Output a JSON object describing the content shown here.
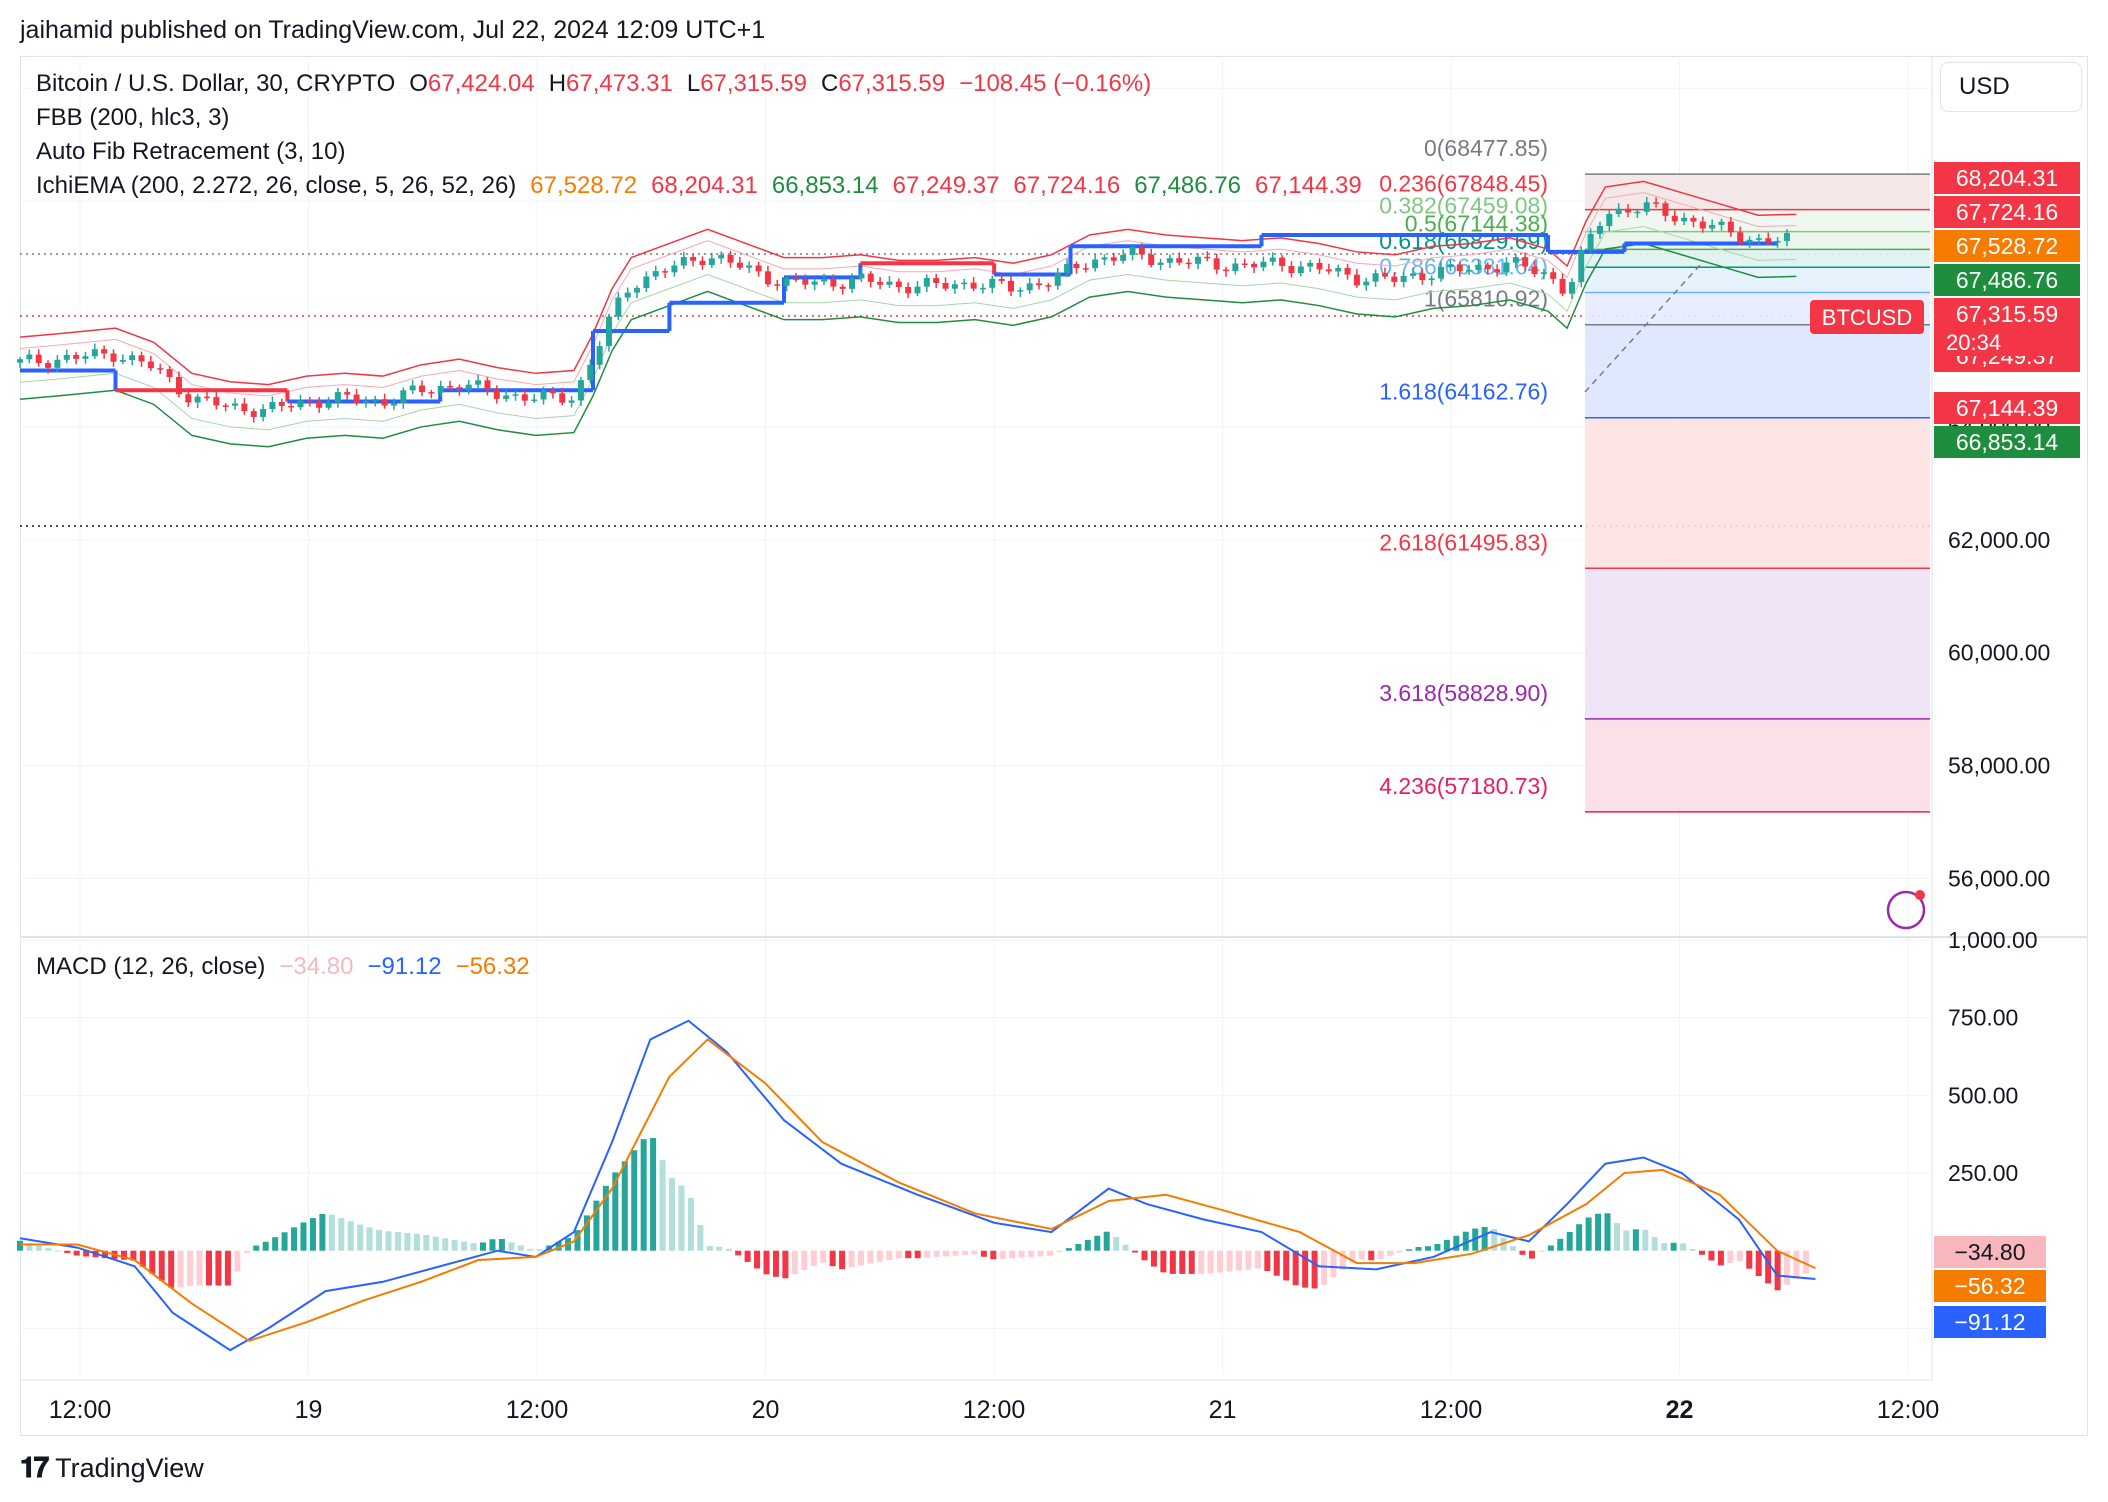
{
  "publisher": "jaihamid published on TradingView.com, Jul 22, 2024 12:09 UTC+1",
  "currency_button": "USD",
  "footer_brand": "TradingView",
  "colors": {
    "up": "#26a69a",
    "down": "#f23645",
    "blue": "#2962ff",
    "orange": "#f57c00",
    "green": "#1e8e3e",
    "red": "#f23645"
  },
  "legend": {
    "symbol": "Bitcoin / U.S. Dollar, 30, CRYPTO",
    "o_label": "O",
    "o": "67,424.04",
    "h_label": "H",
    "h": "67,473.31",
    "l_label": "L",
    "l": "67,315.59",
    "c_label": "C",
    "c": "67,315.59",
    "change": "−108.45 (−0.16%)",
    "fbb": "FBB (200, hlc3, 3)",
    "fib": "Auto Fib Retracement (3, 10)",
    "ichi": "IchiEMA (200, 2.272, 26, close, 5, 26, 52, 26)",
    "ichi_values": [
      {
        "text": "67,528.72",
        "color": "#f57c00"
      },
      {
        "text": "68,204.31",
        "color": "#f23645"
      },
      {
        "text": "66,853.14",
        "color": "#1e8e3e"
      },
      {
        "text": "67,249.37",
        "color": "#f23645"
      },
      {
        "text": "67,724.16",
        "color": "#f23645"
      },
      {
        "text": "67,486.76",
        "color": "#1e8e3e"
      },
      {
        "text": "67,144.39",
        "color": "#f23645"
      }
    ],
    "macd": "MACD (12, 26, close)",
    "macd_values": [
      {
        "text": "−34.80",
        "color": "#f7b7bd"
      },
      {
        "text": "−91.12",
        "color": "#2962ff"
      },
      {
        "text": "−56.32",
        "color": "#f57c00"
      }
    ]
  },
  "fib_levels": [
    {
      "label": "0(68477.85)",
      "value": 68477.85,
      "color": "#787b86"
    },
    {
      "label": "0.236(67848.45)",
      "value": 67848.45,
      "color": "#f23645"
    },
    {
      "label": "0.382(67459.08)",
      "value": 67459.08,
      "color": "#81c784"
    },
    {
      "label": "0.5(67144.38)",
      "value": 67144.38,
      "color": "#4caf50"
    },
    {
      "label": "0.618(66829.69)",
      "value": 66829.69,
      "color": "#009688"
    },
    {
      "label": "0.786(66381.64)",
      "value": 66381.64,
      "color": "#64b5f6"
    },
    {
      "label": "1(65810.92)",
      "value": 65810.92,
      "color": "#787b86"
    },
    {
      "label": "1.618(64162.76)",
      "value": 64162.76,
      "color": "#2962ff"
    },
    {
      "label": "2.618(61495.83)",
      "value": 61495.83,
      "color": "#f23645"
    },
    {
      "label": "3.618(58828.90)",
      "value": 58828.9,
      "color": "#9c27b0"
    },
    {
      "label": "4.236(57180.73)",
      "value": 57180.73,
      "color": "#e91e63"
    }
  ],
  "chart_data": [
    {
      "type": "candlestick",
      "title": "Bitcoin / U.S. Dollar, 30, CRYPTO",
      "ylim": [
        55000,
        70500
      ],
      "y_ticks": [
        {
          "value": 64000,
          "label": "64,000.00"
        },
        {
          "value": 62000,
          "label": "62,000.00"
        },
        {
          "value": 60000,
          "label": "60,000.00"
        },
        {
          "value": 58000,
          "label": "58,000.00"
        },
        {
          "value": 56000,
          "label": "56,000.00"
        }
      ],
      "x_ticks": [
        "12:00",
        "19",
        "12:00",
        "20",
        "12:00",
        "21",
        "12:00",
        "22",
        "12:00"
      ],
      "close_path": [
        [
          0,
          65140
        ],
        [
          0.02,
          65200
        ],
        [
          0.05,
          65300
        ],
        [
          0.07,
          65050
        ],
        [
          0.09,
          64500
        ],
        [
          0.11,
          64350
        ],
        [
          0.13,
          64300
        ],
        [
          0.15,
          64450
        ],
        [
          0.17,
          64500
        ],
        [
          0.19,
          64450
        ],
        [
          0.21,
          64650
        ],
        [
          0.23,
          64750
        ],
        [
          0.25,
          64600
        ],
        [
          0.27,
          64500
        ],
        [
          0.29,
          64550
        ],
        [
          0.3,
          65200
        ],
        [
          0.31,
          66000
        ],
        [
          0.32,
          66550
        ],
        [
          0.34,
          66800
        ],
        [
          0.36,
          67050
        ],
        [
          0.38,
          66800
        ],
        [
          0.4,
          66550
        ],
        [
          0.42,
          66550
        ],
        [
          0.44,
          66600
        ],
        [
          0.46,
          66500
        ],
        [
          0.48,
          66500
        ],
        [
          0.5,
          66550
        ],
        [
          0.52,
          66450
        ],
        [
          0.54,
          66600
        ],
        [
          0.56,
          66950
        ],
        [
          0.58,
          67050
        ],
        [
          0.6,
          66950
        ],
        [
          0.62,
          66900
        ],
        [
          0.64,
          66850
        ],
        [
          0.66,
          66900
        ],
        [
          0.68,
          66800
        ],
        [
          0.7,
          66650
        ],
        [
          0.72,
          66600
        ],
        [
          0.74,
          66750
        ],
        [
          0.76,
          66800
        ],
        [
          0.78,
          66900
        ],
        [
          0.8,
          66700
        ],
        [
          0.81,
          66400
        ],
        [
          0.82,
          67200
        ],
        [
          0.83,
          67800
        ],
        [
          0.85,
          67900
        ],
        [
          0.87,
          67700
        ],
        [
          0.89,
          67500
        ],
        [
          0.91,
          67300
        ],
        [
          0.93,
          67316
        ]
      ],
      "price_labels": [
        {
          "text": "68,204.31",
          "value": 68204.31,
          "bg": "#f23645"
        },
        {
          "text": "67,724.16",
          "value": 67724.16,
          "bg": "#f23645"
        },
        {
          "text": "67,528.72",
          "value": 67528.72,
          "bg": "#f57c00"
        },
        {
          "text": "67,486.76",
          "value": 67486.76,
          "bg": "#1e8e3e"
        },
        {
          "text": "67,315.59",
          "value": 67315.59,
          "bg": "#f23645"
        },
        {
          "text": "67,249.37",
          "value": 67249.37,
          "bg": "#f23645"
        },
        {
          "text": "67,144.39",
          "value": 67144.39,
          "bg": "#f23645"
        },
        {
          "text": "66,853.14",
          "value": 66853.14,
          "bg": "#1e8e3e"
        }
      ],
      "countdown": "20:34",
      "symbol_tag": "BTCUSD"
    },
    {
      "type": "line",
      "title": "MACD (12, 26, close)",
      "ylim": [
        -400,
        1000
      ],
      "y_ticks": [
        {
          "value": 1000,
          "label": "1,000.00"
        },
        {
          "value": 750,
          "label": "750.00"
        },
        {
          "value": 500,
          "label": "500.00"
        },
        {
          "value": 250,
          "label": "250.00"
        }
      ],
      "series": [
        {
          "name": "MACD",
          "color": "#2962ff",
          "values": [
            [
              0,
              40
            ],
            [
              0.03,
              10
            ],
            [
              0.06,
              -50
            ],
            [
              0.08,
              -200
            ],
            [
              0.11,
              -320
            ],
            [
              0.13,
              -250
            ],
            [
              0.16,
              -130
            ],
            [
              0.19,
              -100
            ],
            [
              0.22,
              -50
            ],
            [
              0.25,
              0
            ],
            [
              0.27,
              -20
            ],
            [
              0.29,
              60
            ],
            [
              0.31,
              350
            ],
            [
              0.33,
              680
            ],
            [
              0.35,
              740
            ],
            [
              0.37,
              640
            ],
            [
              0.4,
              420
            ],
            [
              0.43,
              280
            ],
            [
              0.47,
              180
            ],
            [
              0.51,
              90
            ],
            [
              0.54,
              60
            ],
            [
              0.57,
              200
            ],
            [
              0.59,
              150
            ],
            [
              0.62,
              100
            ],
            [
              0.65,
              60
            ],
            [
              0.68,
              -50
            ],
            [
              0.71,
              -60
            ],
            [
              0.74,
              -20
            ],
            [
              0.77,
              60
            ],
            [
              0.79,
              30
            ],
            [
              0.81,
              150
            ],
            [
              0.83,
              280
            ],
            [
              0.85,
              300
            ],
            [
              0.87,
              250
            ],
            [
              0.9,
              100
            ],
            [
              0.92,
              -80
            ],
            [
              0.94,
              -91
            ]
          ]
        },
        {
          "name": "Signal",
          "color": "#f57c00",
          "values": [
            [
              0,
              20
            ],
            [
              0.03,
              20
            ],
            [
              0.06,
              -30
            ],
            [
              0.09,
              -170
            ],
            [
              0.12,
              -290
            ],
            [
              0.15,
              -230
            ],
            [
              0.18,
              -160
            ],
            [
              0.21,
              -100
            ],
            [
              0.24,
              -30
            ],
            [
              0.27,
              -20
            ],
            [
              0.29,
              30
            ],
            [
              0.31,
              200
            ],
            [
              0.34,
              560
            ],
            [
              0.36,
              680
            ],
            [
              0.39,
              540
            ],
            [
              0.42,
              350
            ],
            [
              0.46,
              220
            ],
            [
              0.5,
              120
            ],
            [
              0.54,
              70
            ],
            [
              0.57,
              160
            ],
            [
              0.6,
              180
            ],
            [
              0.63,
              130
            ],
            [
              0.67,
              60
            ],
            [
              0.7,
              -40
            ],
            [
              0.73,
              -40
            ],
            [
              0.76,
              -10
            ],
            [
              0.79,
              50
            ],
            [
              0.82,
              150
            ],
            [
              0.84,
              250
            ],
            [
              0.86,
              260
            ],
            [
              0.89,
              180
            ],
            [
              0.92,
              0
            ],
            [
              0.94,
              -56
            ]
          ]
        }
      ],
      "value_labels": [
        {
          "text": "−34.80",
          "value": -34.8,
          "bg": "#f7b7bd",
          "fg": "#131722"
        },
        {
          "text": "−56.32",
          "value": -56.32,
          "bg": "#f57c00",
          "fg": "#ffffff"
        },
        {
          "text": "−91.12",
          "value": -91.12,
          "bg": "#2962ff",
          "fg": "#ffffff"
        }
      ]
    }
  ]
}
